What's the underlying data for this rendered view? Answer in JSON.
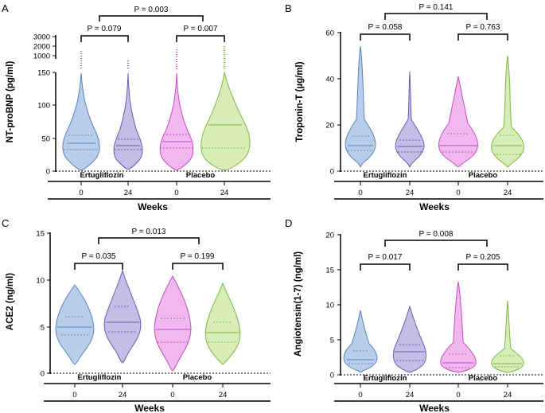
{
  "colors": {
    "ertu_w0_fill": "#b7cdea",
    "ertu_w0_stroke": "#5b82bf",
    "ertu_w24_fill": "#c6bde6",
    "ertu_w24_stroke": "#6b5cb2",
    "plac_w0_fill": "#f1b7ef",
    "plac_w0_stroke": "#c44ec0",
    "plac_w24_fill": "#d8ecb8",
    "plac_w24_stroke": "#7cb843"
  },
  "chart_data": [
    {
      "type": "violin",
      "panel": "A",
      "ylabel": "NT-proBNP (pg/ml)",
      "xlabel": "Weeks",
      "y_axis": "segmented",
      "ylim_lower": [
        0,
        150
      ],
      "yticks_lower": [
        "0",
        "50",
        "100",
        "150"
      ],
      "ylim_upper": [
        150,
        3000
      ],
      "yticks_upper": [
        "1000",
        "2000",
        "3000"
      ],
      "groups": [
        "Ertugliflozin",
        "Placebo"
      ],
      "categories": [
        "0",
        "24",
        "0",
        "24"
      ],
      "series": [
        {
          "name": "Ertugliflozin week 0",
          "median": 42,
          "q1": 34,
          "q3": 55
        },
        {
          "name": "Ertugliflozin week 24",
          "median": 38,
          "q1": 33,
          "q3": 49
        },
        {
          "name": "Placebo week 0",
          "median": 44,
          "q1": 35,
          "q3": 55
        },
        {
          "name": "Placebo week 24",
          "median": 70,
          "q1": 35,
          "q3": 70
        }
      ],
      "comparisons": [
        {
          "label": "P = 0.079",
          "from": 0,
          "to": 1
        },
        {
          "label": "P = 0.007",
          "from": 2,
          "to": 3
        },
        {
          "label": "P = 0.003",
          "from": 0.5,
          "to": 2.5
        }
      ]
    },
    {
      "type": "violin",
      "panel": "B",
      "ylabel": "Troponin-T (µg/ml)",
      "xlabel": "Weeks",
      "ylim": [
        0,
        60
      ],
      "yticks": [
        "0",
        "20",
        "40",
        "60"
      ],
      "groups": [
        "Ertugliflozin",
        "Placebo"
      ],
      "categories": [
        "0",
        "24",
        "0",
        "24"
      ],
      "series": [
        {
          "name": "Ertugliflozin week 0",
          "median": 11,
          "q1": 9,
          "q3": 15
        },
        {
          "name": "Ertugliflozin week 24",
          "median": 10,
          "q1": 8,
          "q3": 14
        },
        {
          "name": "Placebo week 0",
          "median": 11,
          "q1": 8,
          "q3": 16
        },
        {
          "name": "Placebo week 24",
          "median": 11,
          "q1": 7,
          "q3": 15
        }
      ],
      "comparisons": [
        {
          "label": "P = 0.058",
          "from": 0,
          "to": 1
        },
        {
          "label": "P = 0.763",
          "from": 2,
          "to": 3
        },
        {
          "label": "P = 0.141",
          "from": 0.5,
          "to": 2.5
        }
      ]
    },
    {
      "type": "violin",
      "panel": "C",
      "ylabel": "ACE2 (ng/ml)",
      "xlabel": "Weeks",
      "ylim": [
        0,
        15
      ],
      "yticks": [
        "0",
        "5",
        "10",
        "15"
      ],
      "groups": [
        "Ertugliflozin",
        "Placebo"
      ],
      "categories": [
        "0",
        "24",
        "0",
        "24"
      ],
      "series": [
        {
          "name": "Ertugliflozin week 0",
          "median": 4.9,
          "q1": 4.1,
          "q3": 6.0
        },
        {
          "name": "Ertugliflozin week 24",
          "median": 5.5,
          "q1": 4.5,
          "q3": 7.2
        },
        {
          "name": "Placebo week 0",
          "median": 4.7,
          "q1": 3.4,
          "q3": 5.9
        },
        {
          "name": "Placebo week 24",
          "median": 4.3,
          "q1": 3.4,
          "q3": 5.5
        }
      ],
      "comparisons": [
        {
          "label": "P = 0.035",
          "from": 0,
          "to": 1
        },
        {
          "label": "P = 0.199",
          "from": 2,
          "to": 3
        },
        {
          "label": "P = 0.013",
          "from": 0.5,
          "to": 2.5
        }
      ]
    },
    {
      "type": "violin",
      "panel": "D",
      "ylabel": "Angiotensin(1-7) (ng/ml)",
      "xlabel": "Weeks",
      "ylim": [
        0,
        20
      ],
      "yticks": [
        "0",
        "5",
        "10",
        "15",
        "20"
      ],
      "groups": [
        "Ertugliflozin",
        "Placebo"
      ],
      "categories": [
        "0",
        "24",
        "0",
        "24"
      ],
      "series": [
        {
          "name": "Ertugliflozin week 0",
          "median": 2.3,
          "q1": 1.8,
          "q3": 3.3
        },
        {
          "name": "Ertugliflozin week 24",
          "median": 3.3,
          "q1": 2.0,
          "q3": 4.3
        },
        {
          "name": "Placebo week 0",
          "median": 1.8,
          "q1": 1.1,
          "q3": 3.0
        },
        {
          "name": "Placebo week 24",
          "median": 1.6,
          "q1": 1.2,
          "q3": 2.7
        }
      ],
      "comparisons": [
        {
          "label": "P = 0.017",
          "from": 0,
          "to": 1
        },
        {
          "label": "P = 0.205",
          "from": 2,
          "to": 3
        },
        {
          "label": "P = 0.008",
          "from": 0.5,
          "to": 2.5
        }
      ]
    }
  ]
}
